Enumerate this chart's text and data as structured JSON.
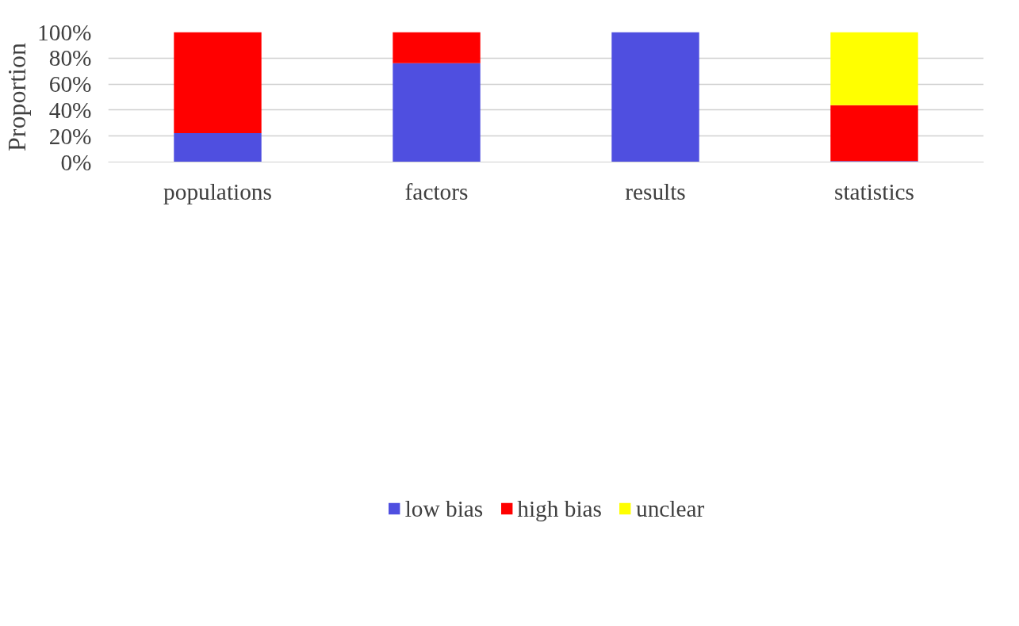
{
  "chart_data": {
    "type": "bar",
    "stacked": true,
    "ylabel": "Proportion",
    "categories": [
      "populations",
      "factors",
      "results",
      "statistics"
    ],
    "series": [
      {
        "name": "low bias",
        "color": "#4f4fe0",
        "values": [
          22.3,
          76.0,
          100,
          0.8
        ]
      },
      {
        "name": "high bias",
        "color": "#ff0000",
        "values": [
          77.7,
          24.0,
          0,
          42.9
        ]
      },
      {
        "name": "unclear",
        "color": "#ffff00",
        "values": [
          0,
          0,
          0,
          56.3
        ]
      }
    ],
    "ylim": [
      0,
      100
    ],
    "yticks": [
      {
        "value": 0,
        "label": "0%"
      },
      {
        "value": 20,
        "label": "20%"
      },
      {
        "value": 40,
        "label": "40%"
      },
      {
        "value": 60,
        "label": "60%"
      },
      {
        "value": 80,
        "label": "80%"
      },
      {
        "value": 100,
        "label": "100%"
      }
    ],
    "grid": "y",
    "legend": "bottom"
  }
}
